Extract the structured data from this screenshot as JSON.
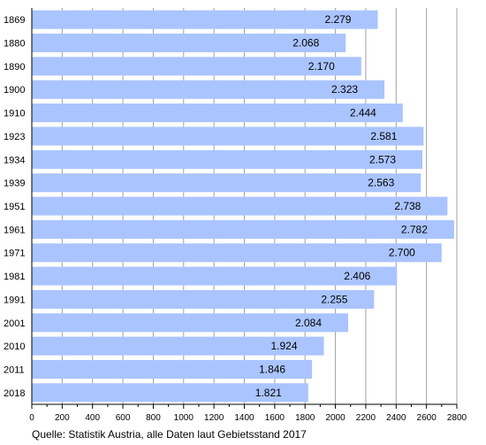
{
  "chart_data": {
    "type": "bar",
    "orientation": "horizontal",
    "categories": [
      "1869",
      "1880",
      "1890",
      "1900",
      "1910",
      "1923",
      "1934",
      "1939",
      "1951",
      "1961",
      "1971",
      "1981",
      "1991",
      "2001",
      "2010",
      "2011",
      "2018"
    ],
    "values": [
      2279,
      2068,
      2170,
      2323,
      2444,
      2581,
      2573,
      2563,
      2738,
      2782,
      2700,
      2406,
      2255,
      2084,
      1924,
      1846,
      1821
    ],
    "value_labels": [
      "2.279",
      "2.068",
      "2.170",
      "2.323",
      "2.444",
      "2.581",
      "2.573",
      "2.563",
      "2.738",
      "2.782",
      "2.700",
      "2.406",
      "2.255",
      "2.084",
      "1.924",
      "1.846",
      "1.821"
    ],
    "xlim": [
      0,
      2800
    ],
    "x_ticks": [
      0,
      200,
      400,
      600,
      800,
      1000,
      1200,
      1400,
      1600,
      1800,
      2000,
      2200,
      2400,
      2600,
      2800
    ],
    "grid": "vertical",
    "bar_color": "#aac4ff",
    "grid_color": "#a0a0a0"
  },
  "source": "Quelle: Statistik Austria, alle Daten laut Gebietsstand 2017"
}
